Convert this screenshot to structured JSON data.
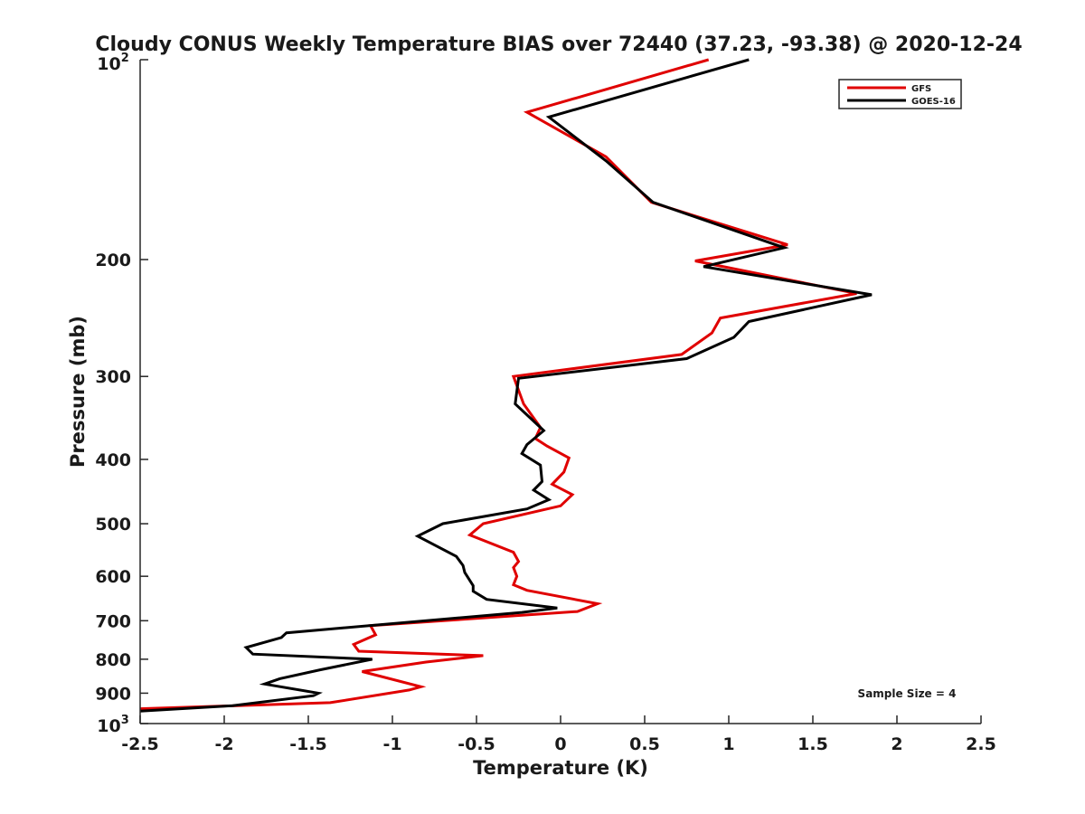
{
  "chart_data": {
    "type": "line",
    "title": "Cloudy CONUS Weekly Temperature BIAS over 72440 (37.23, -93.38) @ 2020-12-24",
    "xlabel": "Temperature (K)",
    "ylabel": "Pressure (mb)",
    "xlim": [
      -2.5,
      2.5
    ],
    "ylim": [
      100,
      1000
    ],
    "y_scale": "log",
    "y_reversed": true,
    "grid": false,
    "legend_position": "top-right",
    "x_ticks": [
      -2.5,
      -2,
      -1.5,
      -1,
      -0.5,
      0,
      0.5,
      1,
      1.5,
      2,
      2.5
    ],
    "x_tick_labels": [
      "-2.5",
      "-2",
      "-1.5",
      "-1",
      "-0.5",
      "0",
      "0.5",
      "1",
      "1.5",
      "2",
      "2.5"
    ],
    "y_ticks": [
      200,
      300,
      400,
      500,
      600,
      700,
      800,
      900
    ],
    "y_tick_labels": [
      "200",
      "300",
      "400",
      "500",
      "600",
      "700",
      "800",
      "900"
    ],
    "y_end_labels": {
      "top_base": "10",
      "top_exp": "2",
      "bottom_base": "10",
      "bottom_exp": "3"
    },
    "annotation": "Sample Size = 4",
    "series": [
      {
        "name": "GFS",
        "color": "#e00000",
        "points": [
          [
            0.88,
            100
          ],
          [
            -0.2,
            120
          ],
          [
            0.27,
            140
          ],
          [
            0.54,
            164
          ],
          [
            1.35,
            190
          ],
          [
            0.8,
            201
          ],
          [
            1.76,
            225
          ],
          [
            0.95,
            245
          ],
          [
            0.9,
            258
          ],
          [
            0.72,
            278
          ],
          [
            -0.28,
            300
          ],
          [
            -0.22,
            330
          ],
          [
            -0.12,
            358
          ],
          [
            -0.15,
            372
          ],
          [
            -0.08,
            382
          ],
          [
            0.05,
            398
          ],
          [
            0.02,
            418
          ],
          [
            -0.05,
            436
          ],
          [
            0.07,
            452
          ],
          [
            0.0,
            470
          ],
          [
            -0.46,
            500
          ],
          [
            -0.54,
            520
          ],
          [
            -0.28,
            552
          ],
          [
            -0.25,
            570
          ],
          [
            -0.28,
            582
          ],
          [
            -0.26,
            600
          ],
          [
            -0.28,
            618
          ],
          [
            -0.2,
            630
          ],
          [
            0.22,
            660
          ],
          [
            0.1,
            678
          ],
          [
            -1.13,
            712
          ],
          [
            -1.1,
            735
          ],
          [
            -1.23,
            760
          ],
          [
            -1.2,
            778
          ],
          [
            -0.46,
            790
          ],
          [
            -0.8,
            808
          ],
          [
            -1.18,
            835
          ],
          [
            -0.83,
            880
          ],
          [
            -0.9,
            890
          ],
          [
            -1.37,
            930
          ],
          [
            -2.5,
            950
          ]
        ]
      },
      {
        "name": "GOES-16",
        "color": "#000000",
        "points": [
          [
            1.12,
            100
          ],
          [
            -0.07,
            122
          ],
          [
            0.27,
            142
          ],
          [
            0.55,
            164
          ],
          [
            1.33,
            192
          ],
          [
            0.85,
            205
          ],
          [
            1.85,
            226
          ],
          [
            1.12,
            248
          ],
          [
            1.03,
            262
          ],
          [
            0.75,
            282
          ],
          [
            -0.25,
            302
          ],
          [
            -0.27,
            330
          ],
          [
            -0.1,
            362
          ],
          [
            -0.2,
            380
          ],
          [
            -0.23,
            392
          ],
          [
            -0.12,
            408
          ],
          [
            -0.11,
            432
          ],
          [
            -0.16,
            445
          ],
          [
            -0.07,
            460
          ],
          [
            -0.2,
            475
          ],
          [
            -0.7,
            500
          ],
          [
            -0.85,
            522
          ],
          [
            -0.62,
            560
          ],
          [
            -0.58,
            578
          ],
          [
            -0.57,
            592
          ],
          [
            -0.52,
            620
          ],
          [
            -0.52,
            632
          ],
          [
            -0.44,
            650
          ],
          [
            -0.02,
            670
          ],
          [
            -0.23,
            680
          ],
          [
            -1.63,
            730
          ],
          [
            -1.66,
            742
          ],
          [
            -1.87,
            768
          ],
          [
            -1.83,
            786
          ],
          [
            -1.12,
            800
          ],
          [
            -1.43,
            830
          ],
          [
            -1.67,
            856
          ],
          [
            -1.76,
            872
          ],
          [
            -1.44,
            900
          ],
          [
            -1.47,
            908
          ],
          [
            -1.95,
            940
          ],
          [
            -2.5,
            958
          ]
        ]
      }
    ]
  }
}
